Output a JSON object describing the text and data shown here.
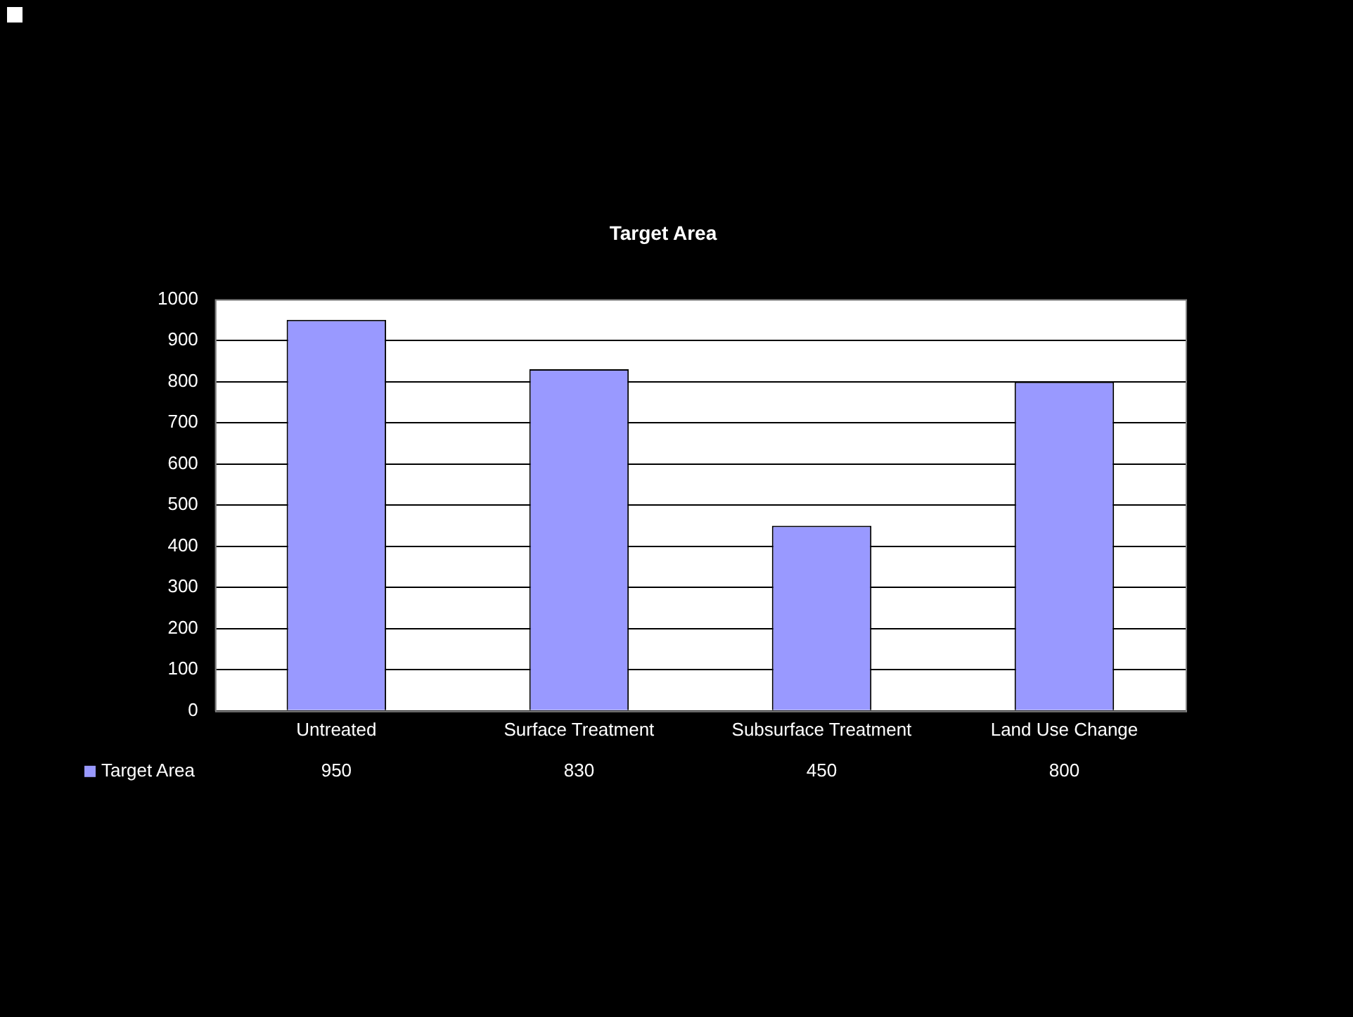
{
  "chart_data": {
    "type": "bar",
    "title": "Target Area",
    "categories": [
      "Untreated",
      "Surface Treatment",
      "Subsurface Treatment",
      "Land Use Change"
    ],
    "series": [
      {
        "name": "Target Area",
        "color": "#9999ff",
        "values": [
          950,
          830,
          450,
          800
        ]
      }
    ],
    "ylim": [
      0,
      1000
    ],
    "yticks": [
      0,
      100,
      200,
      300,
      400,
      500,
      600,
      700,
      800,
      900,
      1000
    ],
    "grid": "y",
    "data_labels": true,
    "legend": "bottom left"
  }
}
